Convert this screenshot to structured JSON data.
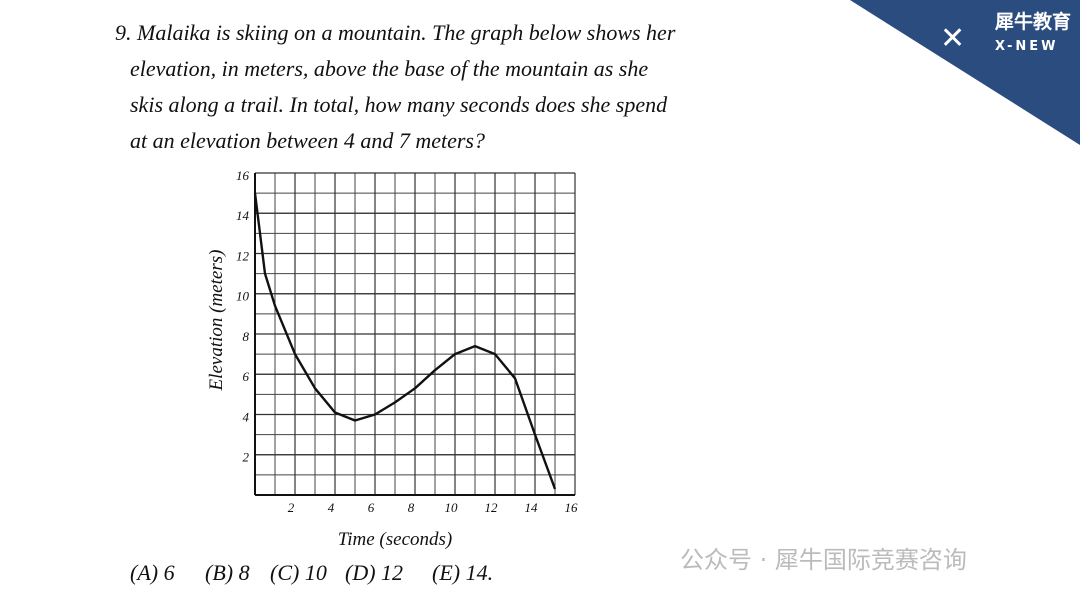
{
  "question": {
    "lines": [
      "9. Malaika is skiing on a mountain. The graph below shows her",
      "elevation, in meters, above the base of the mountain as she",
      "skis along a trail. In total, how many seconds does she spend",
      "at an elevation between 4 and 7 meters?"
    ]
  },
  "choices": [
    "(A) 6",
    "(B) 8",
    "(C) 10",
    "(D) 12",
    "(E) 14."
  ],
  "logo": {
    "name": "犀牛教育",
    "sub": "X-NEW"
  },
  "watermark": "公众号 · 犀牛国际竞赛咨询",
  "chart_data": {
    "type": "line",
    "x_label": "Time (seconds)",
    "y_label": "Elevation (meters)",
    "x": [
      0,
      0.5,
      1,
      2,
      3,
      4,
      5,
      6,
      7,
      8,
      9,
      10,
      11,
      12,
      13,
      14,
      15
    ],
    "y": [
      15,
      11,
      9.4,
      7,
      5.3,
      4.1,
      3.7,
      4,
      4.6,
      5.3,
      6.2,
      7,
      7.4,
      7,
      5.8,
      3,
      0.3
    ],
    "color": "#111111",
    "xlim": [
      0,
      16
    ],
    "ylim": [
      0,
      16
    ],
    "xticks": [
      2,
      4,
      6,
      8,
      10,
      12,
      14,
      16
    ],
    "yticks": [
      2,
      4,
      6,
      8,
      10,
      12,
      14,
      16
    ],
    "grid": true
  }
}
